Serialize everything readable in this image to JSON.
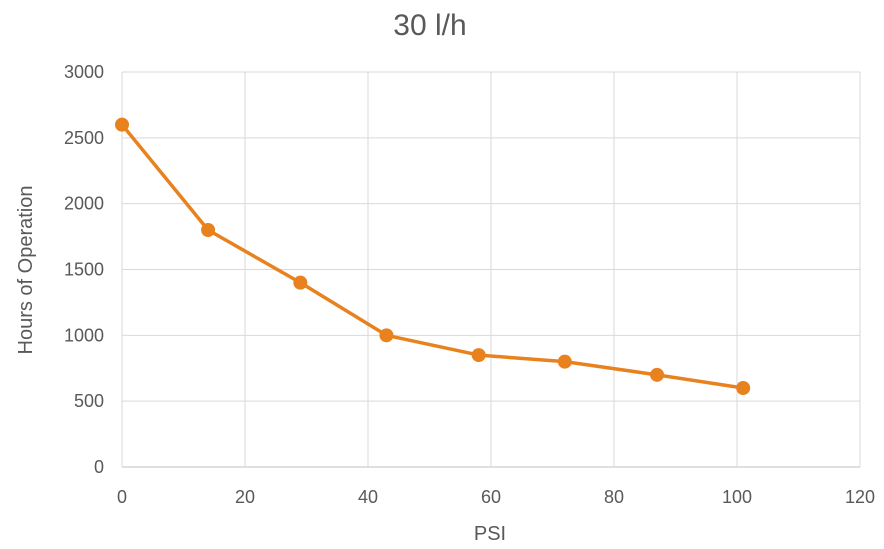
{
  "chart_data": {
    "type": "scatter",
    "title": "30 l/h",
    "xlabel": "PSI",
    "ylabel": "Hours of Operation",
    "xlim": [
      0,
      120
    ],
    "ylim": [
      0,
      3000
    ],
    "xticks": [
      0,
      20,
      40,
      60,
      80,
      100,
      120
    ],
    "yticks": [
      0,
      500,
      1000,
      1500,
      2000,
      2500,
      3000
    ],
    "grid": true,
    "series": [
      {
        "color": "#e8821e",
        "x": [
          0,
          14,
          29,
          43,
          58,
          72,
          87,
          101
        ],
        "y": [
          2600,
          1800,
          1400,
          1000,
          850,
          800,
          700,
          600
        ]
      }
    ]
  }
}
